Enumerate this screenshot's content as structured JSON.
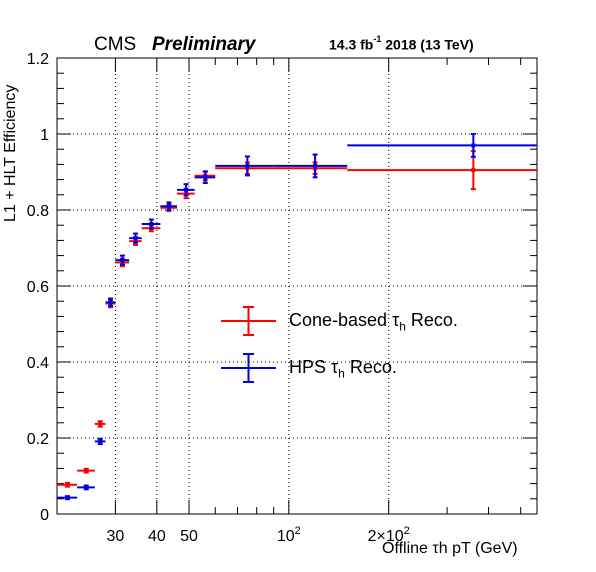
{
  "header": {
    "experiment": "CMS",
    "status": "Preliminary",
    "lumi_prefix": "14.3 fb",
    "lumi_exp": "-1",
    "lumi_suffix": "2018 (13 TeV)"
  },
  "chart_data": {
    "type": "scatter",
    "ylabel": "L1 + HLT Efficiency",
    "xlabel": "Offline τh pT (GeV)",
    "x_scale": "log",
    "xlim": [
      20,
      560
    ],
    "ylim": [
      0,
      1.2
    ],
    "grid": true,
    "legend_position": "center-right",
    "x_ticks": [
      {
        "value": 30,
        "label": "30"
      },
      {
        "value": 40,
        "label": "40"
      },
      {
        "value": 50,
        "label": "50"
      },
      {
        "value": 100,
        "label": "10",
        "sup": "2"
      },
      {
        "value": 200,
        "label": "2×10",
        "sup": "2"
      }
    ],
    "y_ticks": [
      {
        "value": 0,
        "label": "0"
      },
      {
        "value": 0.2,
        "label": "0.2"
      },
      {
        "value": 0.4,
        "label": "0.4"
      },
      {
        "value": 0.6,
        "label": "0.6"
      },
      {
        "value": 0.8,
        "label": "0.8"
      },
      {
        "value": 1,
        "label": "1"
      },
      {
        "value": 1.2,
        "label": "1.2"
      }
    ],
    "series": [
      {
        "name": "Cone-based τh Reco.",
        "legend_main": "Cone-based τ",
        "legend_sub": "h",
        "legend_rest": " Reco.",
        "color": "#ff0000",
        "points": [
          {
            "x": 21.5,
            "xlo": 20,
            "xhi": 23,
            "y": 0.077,
            "ylo": 0.072,
            "yhi": 0.082
          },
          {
            "x": 24.5,
            "xlo": 23,
            "xhi": 26,
            "y": 0.114,
            "ylo": 0.109,
            "yhi": 0.119
          },
          {
            "x": 27,
            "xlo": 26,
            "xhi": 28,
            "y": 0.237,
            "ylo": 0.23,
            "yhi": 0.244
          },
          {
            "x": 29,
            "xlo": 28,
            "xhi": 30,
            "y": 0.554,
            "ylo": 0.544,
            "yhi": 0.564
          },
          {
            "x": 31.5,
            "xlo": 30,
            "xhi": 33,
            "y": 0.662,
            "ylo": 0.652,
            "yhi": 0.672
          },
          {
            "x": 34.5,
            "xlo": 33,
            "xhi": 36,
            "y": 0.718,
            "ylo": 0.708,
            "yhi": 0.728
          },
          {
            "x": 38.5,
            "xlo": 36,
            "xhi": 41,
            "y": 0.752,
            "ylo": 0.744,
            "yhi": 0.76
          },
          {
            "x": 43.5,
            "xlo": 41,
            "xhi": 46,
            "y": 0.806,
            "ylo": 0.797,
            "yhi": 0.815
          },
          {
            "x": 49,
            "xlo": 46,
            "xhi": 52,
            "y": 0.843,
            "ylo": 0.831,
            "yhi": 0.855
          },
          {
            "x": 56,
            "xlo": 52,
            "xhi": 60,
            "y": 0.89,
            "ylo": 0.878,
            "yhi": 0.902
          },
          {
            "x": 75,
            "xlo": 60,
            "xhi": 90,
            "y": 0.91,
            "ylo": 0.895,
            "yhi": 0.925
          },
          {
            "x": 120,
            "xlo": 90,
            "xhi": 150,
            "y": 0.91,
            "ylo": 0.895,
            "yhi": 0.925
          },
          {
            "x": 360,
            "xlo": 150,
            "xhi": 560,
            "y": 0.905,
            "ylo": 0.855,
            "yhi": 0.955
          }
        ]
      },
      {
        "name": "HPS τh Reco.",
        "legend_main": "HPS τ",
        "legend_sub": "h",
        "legend_rest": " Reco.",
        "color": "#0000dd",
        "points": [
          {
            "x": 21.5,
            "xlo": 20,
            "xhi": 23,
            "y": 0.043,
            "ylo": 0.039,
            "yhi": 0.047
          },
          {
            "x": 24.5,
            "xlo": 23,
            "xhi": 26,
            "y": 0.07,
            "ylo": 0.065,
            "yhi": 0.075
          },
          {
            "x": 27,
            "xlo": 26,
            "xhi": 28,
            "y": 0.191,
            "ylo": 0.184,
            "yhi": 0.198
          },
          {
            "x": 29,
            "xlo": 28,
            "xhi": 30,
            "y": 0.557,
            "ylo": 0.547,
            "yhi": 0.567
          },
          {
            "x": 31.5,
            "xlo": 30,
            "xhi": 33,
            "y": 0.668,
            "ylo": 0.656,
            "yhi": 0.68
          },
          {
            "x": 34.5,
            "xlo": 33,
            "xhi": 36,
            "y": 0.726,
            "ylo": 0.714,
            "yhi": 0.738
          },
          {
            "x": 38.5,
            "xlo": 36,
            "xhi": 41,
            "y": 0.763,
            "ylo": 0.751,
            "yhi": 0.775
          },
          {
            "x": 43.5,
            "xlo": 41,
            "xhi": 46,
            "y": 0.81,
            "ylo": 0.8,
            "yhi": 0.82
          },
          {
            "x": 49,
            "xlo": 46,
            "xhi": 52,
            "y": 0.853,
            "ylo": 0.838,
            "yhi": 0.868
          },
          {
            "x": 56,
            "xlo": 52,
            "xhi": 60,
            "y": 0.886,
            "ylo": 0.871,
            "yhi": 0.901
          },
          {
            "x": 75,
            "xlo": 60,
            "xhi": 90,
            "y": 0.916,
            "ylo": 0.891,
            "yhi": 0.941
          },
          {
            "x": 120,
            "xlo": 90,
            "xhi": 150,
            "y": 0.916,
            "ylo": 0.886,
            "yhi": 0.946
          },
          {
            "x": 360,
            "xlo": 150,
            "xhi": 560,
            "y": 0.97,
            "ylo": 0.94,
            "yhi": 1.0
          }
        ]
      }
    ]
  }
}
